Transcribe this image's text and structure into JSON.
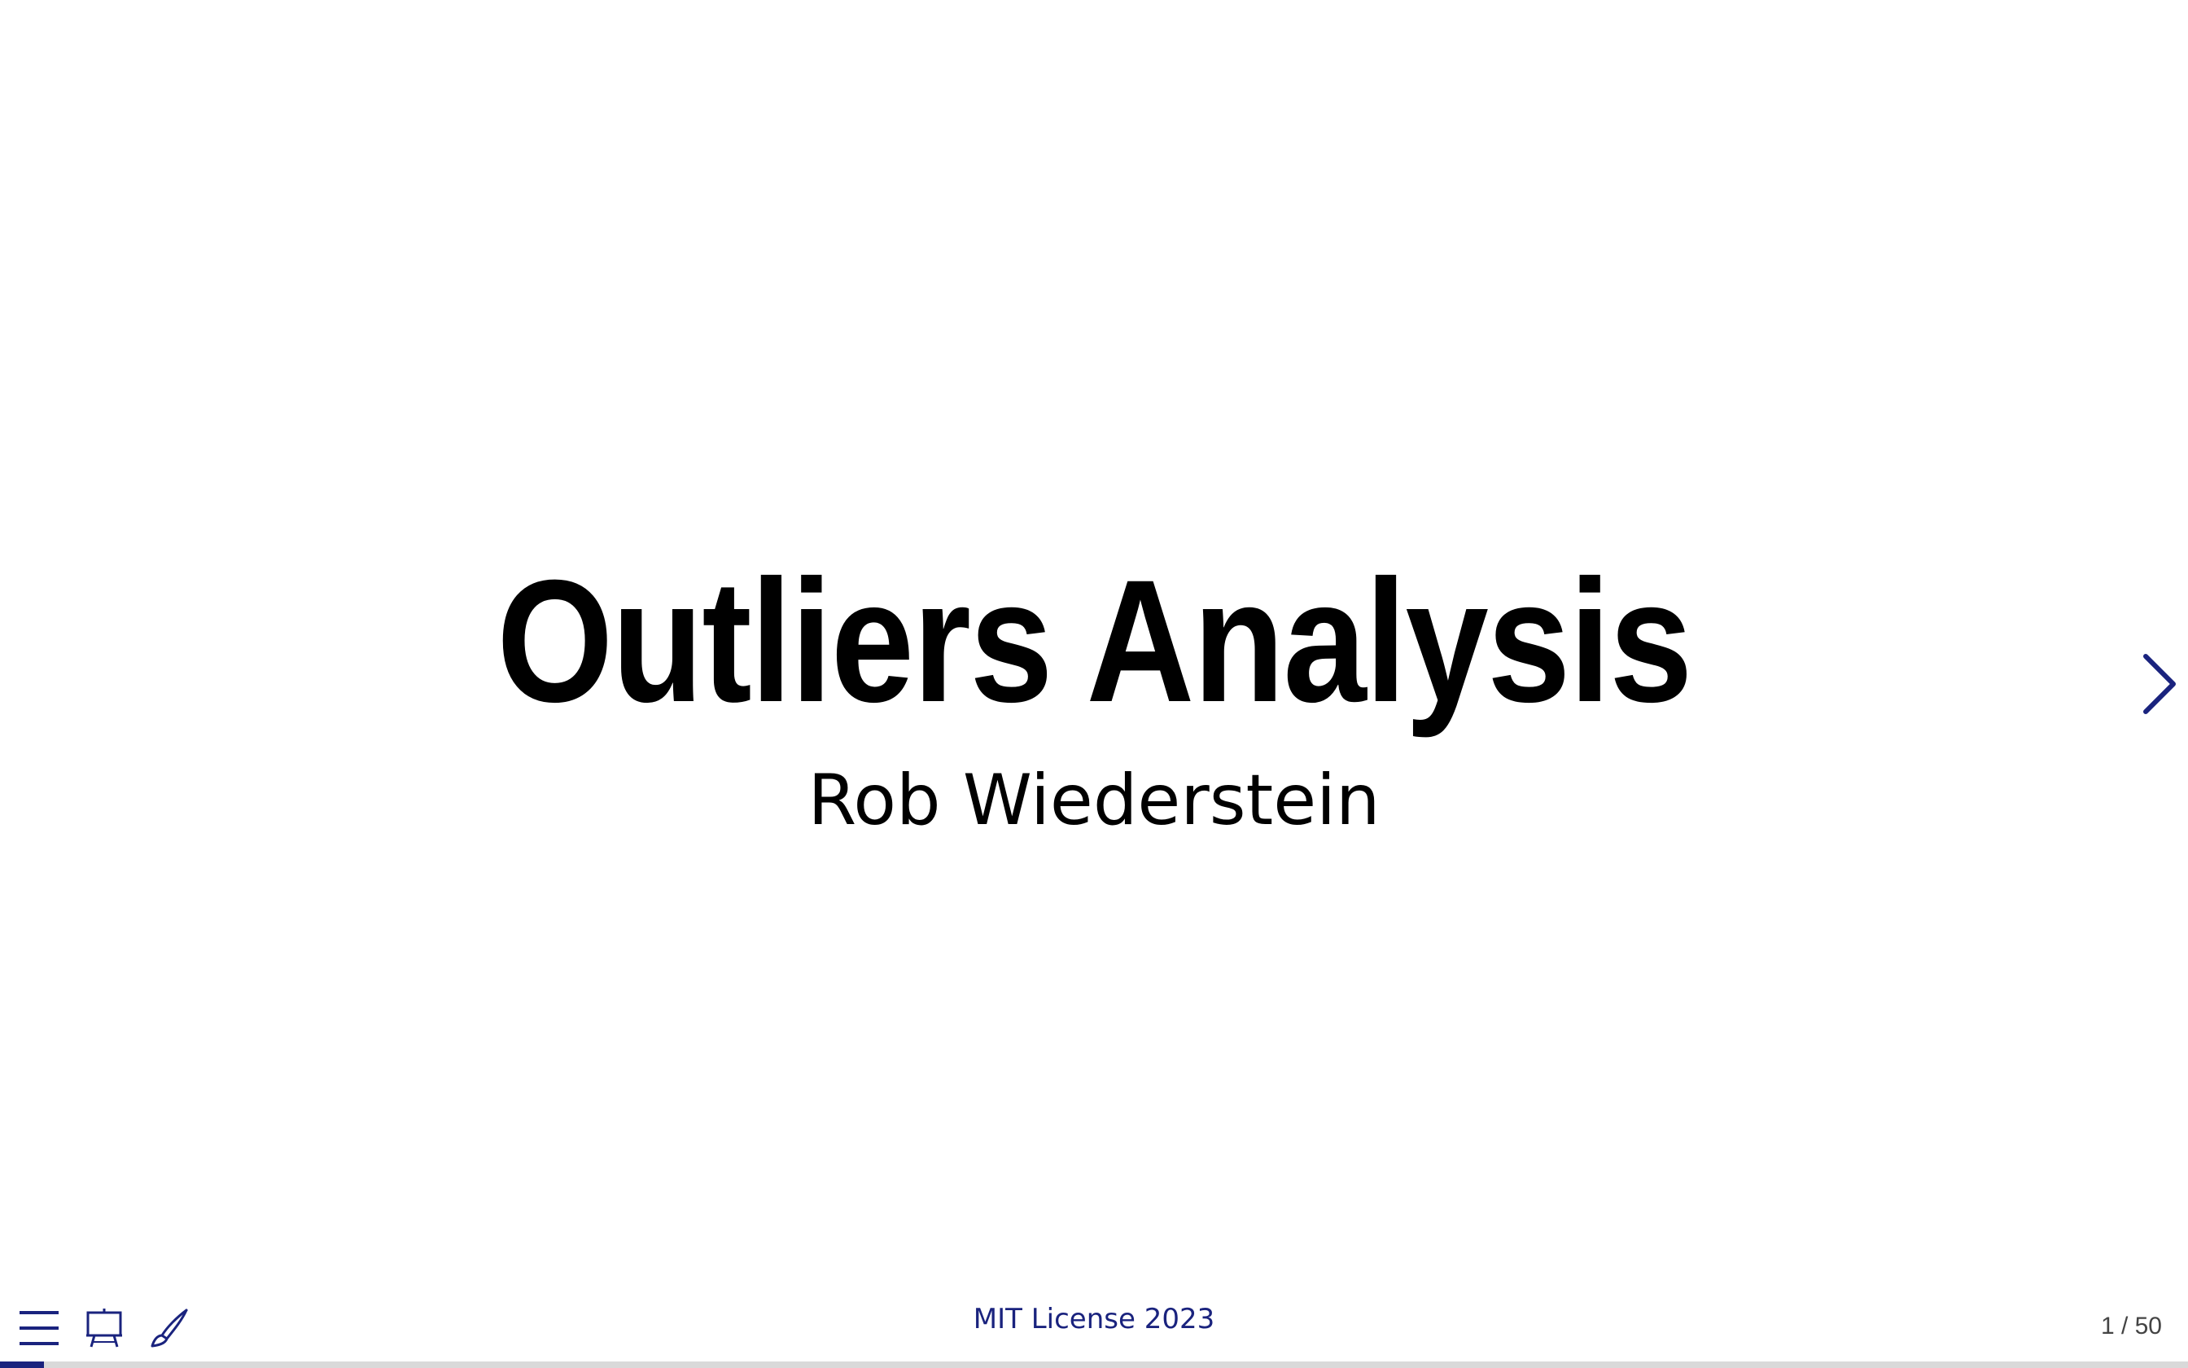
{
  "slide": {
    "title": "Outliers Analysis",
    "author": "Rob Wiederstein"
  },
  "footer": {
    "text": "MIT License 2023",
    "slide_number": "1 / 50",
    "progress_fraction": 0.02
  },
  "toolbar": {
    "icons": [
      "menu-icon",
      "presentation-easel-icon",
      "brush-icon"
    ]
  },
  "navigation": {
    "next_icon": "chevron-right-icon"
  },
  "colors": {
    "accent": "#1a237e",
    "text": "#000000",
    "background": "#ffffff"
  }
}
